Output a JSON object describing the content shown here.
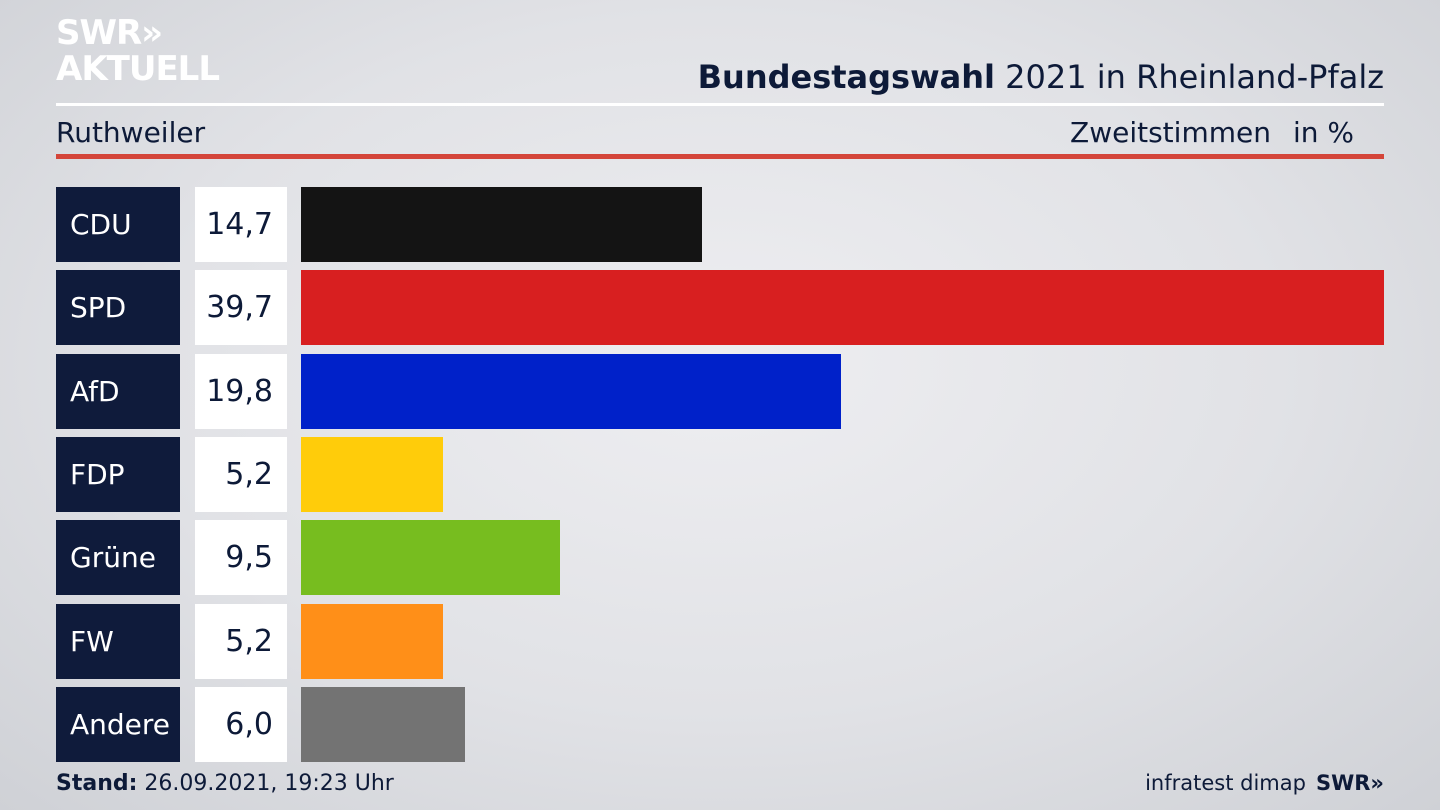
{
  "brand": {
    "logo_line1": "SWR»",
    "logo_line2": "AKTUELL",
    "footer_logo": "SWR»"
  },
  "header": {
    "title_bold": "Bundestagswahl",
    "title_rest": " 2021 in Rheinland-Pfalz",
    "location": "Ruthweiler",
    "measure": "Zweitstimmen",
    "unit": "in %"
  },
  "footer": {
    "stand_label": "Stand:",
    "stand_value": " 26.09.2021, 19:23 Uhr",
    "source": "infratest dimap"
  },
  "chart_data": {
    "type": "bar",
    "orientation": "horizontal",
    "title": "Bundestagswahl 2021 in Rheinland-Pfalz",
    "subtitle": "Ruthweiler",
    "measure": "Zweitstimmen",
    "unit": "in %",
    "categories": [
      "CDU",
      "SPD",
      "AfD",
      "FDP",
      "Grüne",
      "FW",
      "Andere"
    ],
    "values": [
      14.7,
      39.7,
      19.8,
      5.2,
      9.5,
      5.2,
      6.0
    ],
    "value_labels": [
      "14,7",
      "39,7",
      "19,8",
      "5,2",
      "9,5",
      "5,2",
      "6,0"
    ],
    "colors": [
      "#141414",
      "#d81f20",
      "#0021c9",
      "#ffcc0a",
      "#77bd1f",
      "#ff8f18",
      "#737373"
    ],
    "xlim": [
      0,
      39.7
    ],
    "grid": false,
    "legend": "none"
  }
}
